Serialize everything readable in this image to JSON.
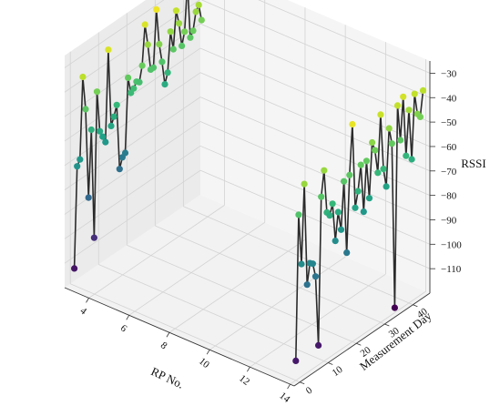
{
  "chart_data": {
    "type": "scatter",
    "subtype": "3d-line-scatter",
    "title": "",
    "xlabel": "RP No.",
    "ylabel": "Measurement Day",
    "zlabel": "RSSI",
    "xlim": [
      2.8,
      14.2
    ],
    "ylim": [
      -2,
      46
    ],
    "zlim": [
      -120,
      -25
    ],
    "x_ticks": [
      "4",
      "6",
      "8",
      "10",
      "12",
      "14"
    ],
    "y_ticks": [
      "0",
      "10",
      "20",
      "30",
      "40"
    ],
    "z_ticks": [
      "−30",
      "−40",
      "−50",
      "−60",
      "−70",
      "−80",
      "−90",
      "−100",
      "−110"
    ],
    "grid": true,
    "colormap": "viridis",
    "color_by": "RSSI",
    "line_color": "#2b2b2b",
    "series": [
      {
        "x": 3,
        "days": [
          0,
          1,
          2,
          3,
          4,
          5,
          6,
          7,
          8,
          9,
          10,
          11,
          12,
          13,
          14,
          15,
          16,
          17,
          18,
          19,
          20,
          21,
          22,
          23,
          24,
          25,
          26,
          27,
          28,
          29,
          30,
          31,
          32,
          33,
          34,
          35,
          36,
          37,
          38,
          39,
          40,
          41,
          42,
          43,
          44,
          45
        ],
        "rssi": [
          -113,
          -72,
          -70,
          -37,
          -51,
          -88,
          -61,
          -106,
          -47,
          -64,
          -67,
          -70,
          -33,
          -65,
          -62,
          -58,
          -85,
          -81,
          -80,
          -50,
          -57,
          -56,
          -54,
          -55,
          -49,
          -33,
          -42,
          -53,
          -53,
          -30,
          -45,
          -53,
          -63,
          -59,
          -43,
          -51,
          -36,
          -42,
          -52,
          -47,
          -28,
          -51,
          -49,
          -42,
          -40,
          -47
        ]
      },
      {
        "x": 14,
        "days": [
          0,
          1,
          2,
          3,
          4,
          5,
          6,
          7,
          8,
          9,
          10,
          11,
          12,
          13,
          14,
          15,
          16,
          17,
          18,
          19,
          20,
          21,
          22,
          23,
          24,
          25,
          26,
          27,
          28,
          29,
          30,
          31,
          32,
          33,
          34,
          35,
          36,
          37,
          38,
          39,
          40,
          41,
          42,
          43,
          44,
          45
        ],
        "rssi": [
          -112,
          -53,
          -74,
          -42,
          -84,
          -76,
          -77,
          -83,
          -112,
          -52,
          -42,
          -60,
          -62,
          -58,
          -74,
          -63,
          -71,
          -52,
          -82,
          -51,
          -31,
          -66,
          -60,
          -50,
          -70,
          -50,
          -66,
          -44,
          -48,
          -58,
          -35,
          -58,
          -66,
          -43,
          -50,
          -118,
          -36,
          -51,
          -34,
          -59,
          -41,
          -62,
          -36,
          -45,
          -47,
          -37
        ]
      }
    ]
  }
}
